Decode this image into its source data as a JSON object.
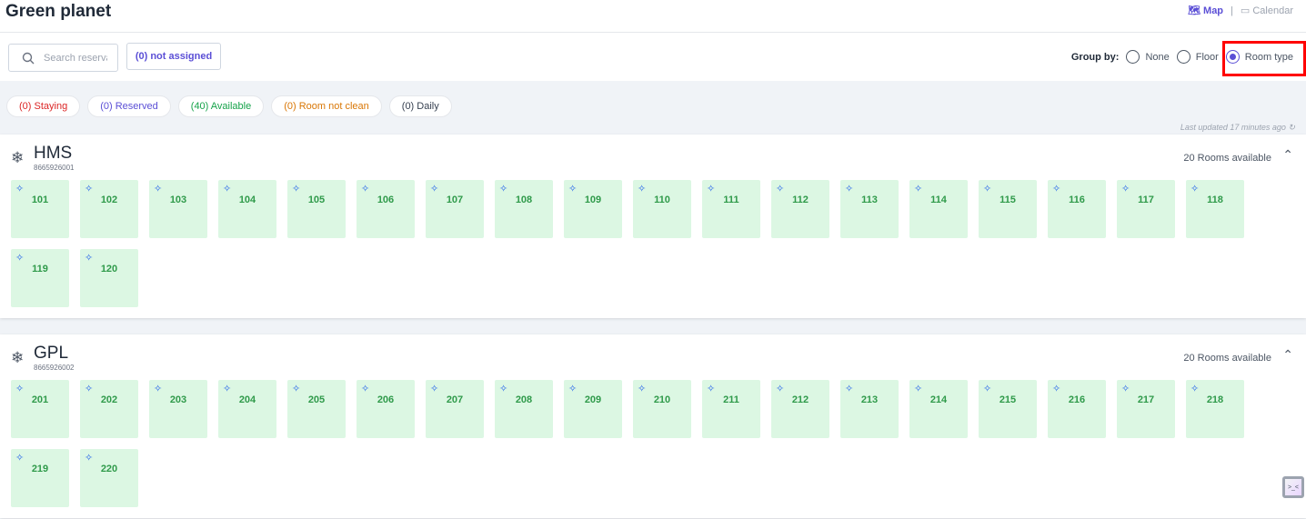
{
  "header": {
    "title": "Green planet",
    "views": [
      {
        "label": "Map",
        "icon": "map-icon",
        "active": true
      },
      {
        "label": "Calendar",
        "icon": "calendar-icon",
        "active": false
      }
    ],
    "separator": "|"
  },
  "toolbar": {
    "search_placeholder": "Search reserva",
    "not_assigned": "(0) not assigned",
    "group_by_label": "Group by:",
    "group_options": [
      {
        "label": "None",
        "selected": false
      },
      {
        "label": "Floor",
        "selected": false
      },
      {
        "label": "Room type",
        "selected": true
      }
    ]
  },
  "filters": [
    {
      "label": "(0) Staying",
      "color": "#dc2626"
    },
    {
      "label": "(0) Reserved",
      "color": "#5b4fd6"
    },
    {
      "label": "(40) Available",
      "color": "#16a34a"
    },
    {
      "label": "(0) Room not clean",
      "color": "#d97706"
    },
    {
      "label": "(0) Daily",
      "color": "#374151"
    }
  ],
  "last_updated": "Last updated 17 minutes ago",
  "sections": [
    {
      "name": "HMS",
      "code": "8665926001",
      "available": "20 Rooms available",
      "rooms": [
        "101",
        "102",
        "103",
        "104",
        "105",
        "106",
        "107",
        "108",
        "109",
        "110",
        "111",
        "112",
        "113",
        "114",
        "115",
        "116",
        "117",
        "118",
        "119",
        "120"
      ]
    },
    {
      "name": "GPL",
      "code": "8665926002",
      "available": "20 Rooms available",
      "rooms": [
        "201",
        "202",
        "203",
        "204",
        "205",
        "206",
        "207",
        "208",
        "209",
        "210",
        "211",
        "212",
        "213",
        "214",
        "215",
        "216",
        "217",
        "218",
        "219",
        "220"
      ]
    }
  ],
  "colors": {
    "accent": "#5b4fd6",
    "room_bg": "#dcf7e3",
    "room_text": "#2f9a4a",
    "highlight": "#ff0000"
  }
}
